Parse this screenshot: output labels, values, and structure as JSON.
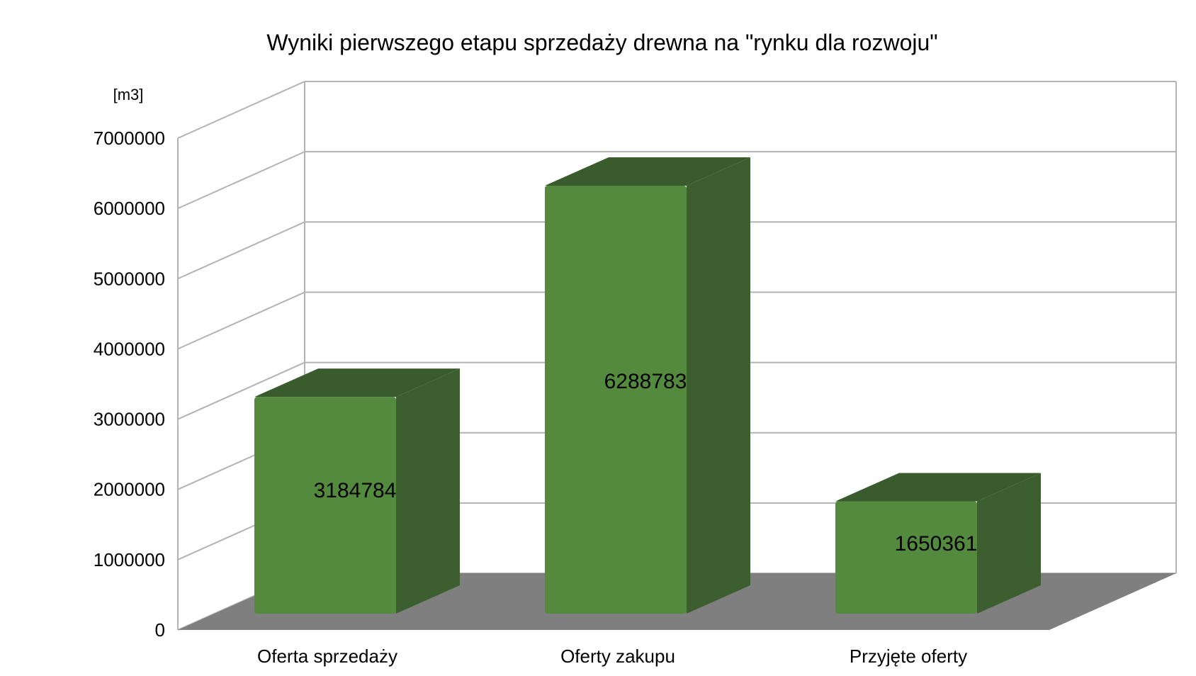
{
  "chart_data": {
    "type": "bar",
    "title": "Wyniki pierwszego etapu sprzedaży drewna na \"rynku dla rozwoju\"",
    "ylabel": "[m3]",
    "xlabel": "",
    "categories": [
      "Oferta sprzedaży",
      "Oferty zakupu",
      "Przyjęte oferty"
    ],
    "values": [
      3184784,
      6288783,
      1650361
    ],
    "data_labels": [
      "3184784",
      "6288783",
      "1650361"
    ],
    "ylim": [
      0,
      7000000
    ],
    "yticks": [
      0,
      1000000,
      2000000,
      3000000,
      4000000,
      5000000,
      6000000,
      7000000
    ],
    "ytick_labels": [
      "0",
      "1000000",
      "2000000",
      "3000000",
      "4000000",
      "5000000",
      "6000000",
      "7000000"
    ],
    "grid": true,
    "legend": "none",
    "style": "3d",
    "colors": {
      "bar_front": "#548a3e",
      "bar_side": "#3d5f30",
      "bar_top": "#3a5c2d",
      "floor": "#7f7f7f",
      "grid": "#b3b3b3",
      "text": "#000000"
    }
  }
}
